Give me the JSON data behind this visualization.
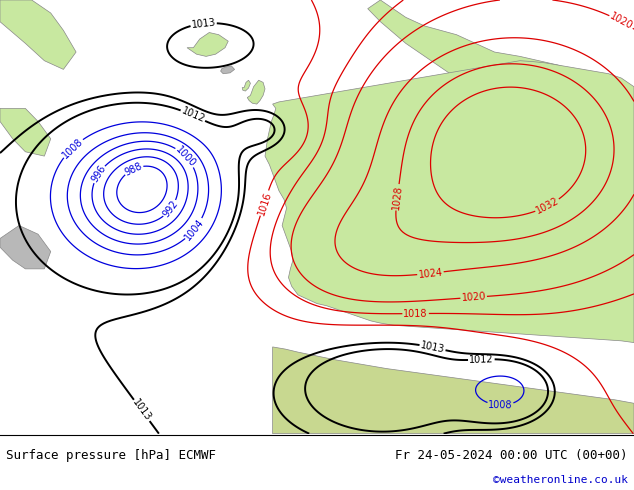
{
  "title_left": "Surface pressure [hPa] ECMWF",
  "title_right": "Fr 24-05-2024 00:00 UTC (00+00)",
  "copyright": "©weatheronline.co.uk",
  "bg_map_color": "#e8e8e8",
  "land_color": "#c8e8a0",
  "gray_land_color": "#b0b0b0",
  "sea_color": "#e0e8f0",
  "footer_bg": "#ffffff",
  "footer_text_color": "#000000",
  "copyright_color": "#0000cc",
  "font_family": "monospace",
  "footer_fontsize": 9,
  "label_fontsize": 7,
  "blue_color": "#0000dd",
  "red_color": "#dd0000",
  "black_color": "#000000"
}
